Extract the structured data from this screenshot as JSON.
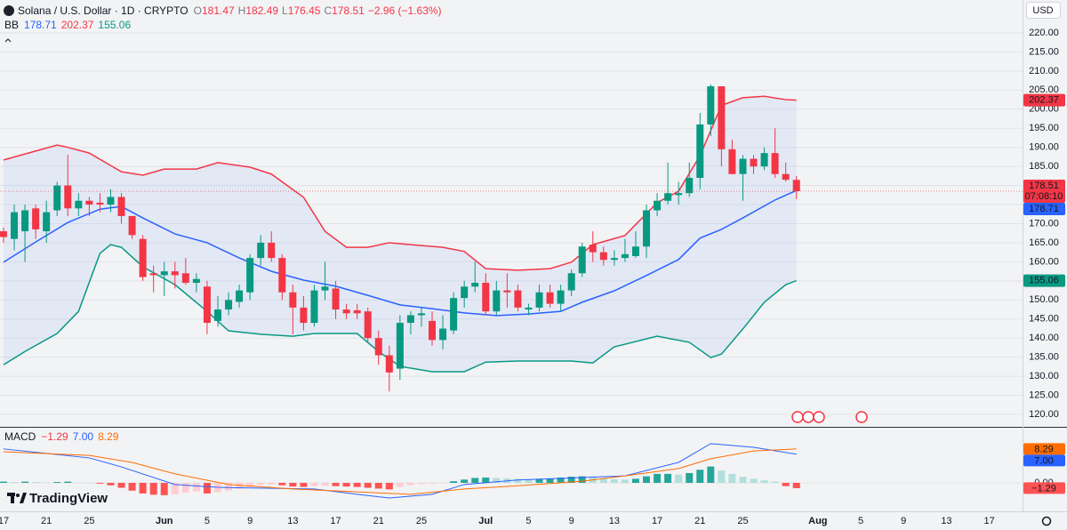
{
  "chart_data": [
    {
      "type": "candlestick",
      "title": "Solana / U.S. Dollar · 1D · CRYPTO",
      "quote_labels": [
        "O",
        "H",
        "L",
        "C"
      ],
      "change": "−2.96 (−1.63%)",
      "indicator": "BB",
      "currency": "USD",
      "countdown": "07:08:10",
      "brand": "TradingView",
      "open": [
        168,
        166,
        168,
        174,
        168,
        173.5,
        180,
        174,
        176,
        175.5,
        175,
        177,
        172,
        166,
        157,
        156.5,
        157.5,
        157,
        154.5,
        153.5,
        144.5,
        147.5,
        149.5,
        152,
        161,
        165,
        161,
        152,
        148,
        144,
        152.5,
        153,
        147.5,
        147.3,
        147,
        140,
        135.5,
        132,
        144,
        146,
        144.5,
        139.5,
        142,
        150.5,
        153.5,
        154.5,
        147,
        152.5,
        152.5,
        147.5,
        148,
        152,
        149,
        152.5,
        157,
        164.5,
        162.5,
        160.5,
        161,
        161.5,
        164,
        173.5,
        176,
        177.5,
        178,
        182,
        196,
        206,
        189.5,
        183,
        187,
        185,
        188.5,
        183,
        181.47
      ],
      "high": [
        169,
        175,
        175,
        175,
        176,
        181,
        188,
        178,
        177,
        178,
        179,
        178,
        172,
        167,
        159,
        160,
        160,
        161,
        157,
        155,
        151,
        152,
        154,
        162,
        167,
        168,
        162,
        154,
        151,
        154,
        160,
        155,
        149,
        149,
        148,
        142,
        138,
        146,
        147,
        148,
        147,
        146,
        152,
        155,
        160,
        157,
        155,
        157,
        154,
        149,
        154,
        154,
        154,
        158,
        165,
        168,
        164,
        163,
        166,
        168,
        175,
        178,
        186,
        181,
        186,
        199,
        206.5,
        206,
        192,
        188,
        188,
        190,
        195,
        186,
        182.49
      ],
      "low": [
        165,
        163,
        160,
        166,
        165,
        172,
        172,
        172,
        172,
        173,
        173,
        170,
        166,
        155,
        152,
        151,
        153,
        154,
        152,
        141,
        143,
        146,
        148,
        150,
        159,
        160,
        150,
        141,
        142,
        143,
        150,
        145,
        145,
        145,
        139,
        133,
        126,
        129,
        141,
        143,
        138,
        137,
        141,
        148,
        152,
        146,
        146,
        148,
        147,
        146,
        147,
        148,
        147,
        151,
        156,
        160,
        159,
        159,
        160,
        161,
        161,
        172,
        175,
        175,
        177,
        179,
        193,
        185,
        183,
        176,
        183,
        184,
        182,
        181,
        176.45
      ],
      "close": [
        166.5,
        173,
        173.5,
        168.5,
        173,
        180,
        174,
        176,
        175,
        175,
        177,
        172,
        167,
        156,
        156.5,
        157.5,
        156.5,
        154.5,
        155.5,
        144,
        147.5,
        150,
        152.5,
        161,
        165,
        161,
        152,
        148,
        144,
        152.5,
        153.5,
        147.5,
        146.5,
        146.5,
        140,
        135.5,
        131,
        144,
        146,
        146.5,
        139.5,
        142.5,
        150.5,
        153.5,
        154.5,
        147,
        152.5,
        152,
        148,
        148,
        152,
        149,
        152.5,
        157,
        164,
        162.5,
        160.5,
        161,
        162,
        164,
        173.5,
        176,
        178,
        178,
        182,
        196,
        206,
        189.5,
        183,
        187,
        185,
        188.5,
        183,
        181.5,
        178.51
      ],
      "up_color": "#089981",
      "down_color": "#f23645",
      "bands": [
        {
          "color": "#f23645",
          "x": [
            0,
            5,
            6,
            8,
            11,
            13,
            15,
            18,
            20,
            23,
            25,
            28,
            30,
            32,
            34,
            36,
            38,
            41,
            43,
            45,
            48,
            51,
            53,
            55,
            58,
            61,
            63,
            65,
            67,
            69,
            71,
            73,
            74
          ],
          "values": [
            186.7,
            190.6,
            190,
            188.5,
            183.6,
            182.7,
            184.3,
            184.3,
            186,
            184.8,
            183,
            176.9,
            168,
            163.8,
            163.8,
            165,
            164.5,
            163.8,
            162.7,
            158.2,
            157.8,
            158.2,
            159.9,
            164.5,
            166.9,
            175.5,
            178.5,
            187.8,
            201,
            203,
            203.4,
            202.5,
            202.37
          ]
        },
        {
          "color": "#2962ff",
          "x": [
            0,
            3,
            6,
            9,
            11,
            13,
            16,
            19,
            22,
            25,
            28,
            31,
            34,
            37,
            40,
            43,
            46,
            49,
            52,
            54,
            57,
            60,
            63,
            65,
            67,
            69,
            72,
            74
          ],
          "values": [
            159.9,
            165.2,
            170.3,
            173.8,
            174.5,
            171.5,
            167.3,
            165,
            161,
            157.5,
            155.2,
            153.6,
            151.2,
            148.7,
            147.7,
            146.6,
            145.9,
            146.3,
            147,
            149.4,
            152.4,
            156.4,
            160.6,
            166.2,
            168.5,
            171.5,
            176.2,
            178.71
          ]
        },
        {
          "color": "#089981",
          "x": [
            0,
            2,
            5,
            7,
            9,
            10,
            11,
            13,
            16,
            19,
            21,
            24,
            27,
            29,
            31,
            33,
            35,
            37,
            40,
            43,
            45,
            48,
            53,
            55,
            57,
            61,
            64,
            66,
            67,
            69,
            71,
            73,
            74
          ],
          "values": [
            133,
            136.5,
            141.2,
            147,
            162.2,
            164.5,
            163.8,
            158.7,
            154,
            147,
            141.9,
            141,
            140.5,
            141.2,
            141.2,
            141.2,
            136.5,
            132.6,
            131.2,
            131.2,
            133.7,
            134,
            134,
            133.5,
            137.7,
            140.5,
            138.9,
            134.9,
            135.8,
            142.4,
            149.4,
            154,
            155.06
          ]
        }
      ],
      "ylim": [
        116.74,
        228.62
      ],
      "yticks": [
        {
          "value": 120,
          "label": "120.00"
        },
        {
          "value": 125,
          "label": "125.00"
        },
        {
          "value": 130,
          "label": "130.00"
        },
        {
          "value": 135,
          "label": "135.00"
        },
        {
          "value": 140,
          "label": "140.00"
        },
        {
          "value": 145,
          "label": "145.00"
        },
        {
          "value": 150,
          "label": "150.00"
        },
        {
          "value": 155,
          "label": "155.00"
        },
        {
          "value": 160,
          "label": "160.00"
        },
        {
          "value": 165,
          "label": "165.00"
        },
        {
          "value": 170,
          "label": "170.00"
        },
        {
          "value": 175,
          "label": "175.00"
        },
        {
          "value": 180,
          "label": "180.00"
        },
        {
          "value": 185,
          "label": "185.00"
        },
        {
          "value": 190,
          "label": "190.00"
        },
        {
          "value": 195,
          "label": "195.00"
        },
        {
          "value": 200,
          "label": "200.00"
        },
        {
          "value": 205,
          "label": "205.00"
        },
        {
          "value": 210,
          "label": "210.00"
        },
        {
          "value": 215,
          "label": "215.00"
        },
        {
          "value": 220,
          "label": "220.00"
        }
      ],
      "xlim": [
        -0.33,
        95.1
      ],
      "xticks": [
        {
          "value": 0,
          "label": "17"
        },
        {
          "value": 4,
          "label": "21"
        },
        {
          "value": 8,
          "label": "25"
        },
        {
          "value": 15,
          "label": "Jun"
        },
        {
          "value": 19,
          "label": "5"
        },
        {
          "value": 23,
          "label": "9"
        },
        {
          "value": 27,
          "label": "13"
        },
        {
          "value": 31,
          "label": "17"
        },
        {
          "value": 35,
          "label": "21"
        },
        {
          "value": 39,
          "label": "25"
        },
        {
          "value": 45,
          "label": "Jul"
        },
        {
          "value": 49,
          "label": "5"
        },
        {
          "value": 53,
          "label": "9"
        },
        {
          "value": 57,
          "label": "13"
        },
        {
          "value": 61,
          "label": "17"
        },
        {
          "value": 65,
          "label": "21"
        },
        {
          "value": 69,
          "label": "25"
        },
        {
          "value": 76,
          "label": "Aug"
        },
        {
          "value": 80,
          "label": "5"
        },
        {
          "value": 84,
          "label": "9"
        },
        {
          "value": 88,
          "label": "13"
        },
        {
          "value": 92,
          "label": "17"
        }
      ],
      "grid": true
    },
    {
      "type": "macd",
      "indicator": "MACD",
      "ylim": [
        -6.96,
        13.26
      ],
      "yticks": [
        {
          "value": 0,
          "label": "0.00"
        }
      ],
      "histogram": {
        "values": [
          0.3,
          0.2,
          0.3,
          0.2,
          0.1,
          0.2,
          0.3,
          0.1,
          0,
          -0.2,
          -0.6,
          -1.2,
          -1.9,
          -2.6,
          -2.9,
          -3.0,
          -2.8,
          -2.4,
          -2.1,
          -2.6,
          -2.3,
          -1.9,
          -1.5,
          -1.0,
          -0.5,
          -0.4,
          -0.6,
          -0.9,
          -1.0,
          -0.8,
          -0.7,
          -0.8,
          -0.9,
          -1.0,
          -1.2,
          -1.4,
          -1.6,
          -1.0,
          -0.6,
          -0.3,
          -0.2,
          -0.1,
          0.4,
          0.8,
          1.2,
          1.3,
          1.2,
          1.1,
          1.0,
          0.9,
          1.0,
          1.1,
          1.3,
          1.5,
          1.6,
          1.4,
          1.1,
          0.9,
          0.8,
          1.0,
          1.6,
          2.2,
          2.2,
          2.0,
          2.4,
          3.2,
          4.0,
          3.0,
          2.2,
          1.5,
          1.0,
          0.6,
          0.3,
          -0.8,
          -1.29
        ],
        "last_label": "−1.29",
        "colors": [
          "#26a69a",
          "#b2dfdb",
          "#ff5252",
          "#ffcdd2"
        ]
      },
      "series": [
        {
          "color": "#2962ff",
          "x": [
            0,
            8,
            11,
            16,
            20,
            29,
            33,
            36,
            40,
            43,
            48,
            54,
            58,
            63,
            66,
            70,
            74
          ],
          "values": [
            8.3,
            6.1,
            3.9,
            -0.4,
            -1.1,
            -1.5,
            -2.8,
            -3.7,
            -2.8,
            -0.4,
            0.7,
            1.3,
            1.7,
            5.0,
            9.6,
            8.7,
            7
          ],
          "last_label": "7.00"
        },
        {
          "color": "#ff6d00",
          "x": [
            0,
            8,
            12,
            16,
            21,
            27,
            33,
            38,
            43,
            48,
            54,
            58,
            63,
            66,
            70,
            74
          ],
          "values": [
            7.6,
            6.7,
            5.0,
            2.2,
            -0.4,
            -1.5,
            -2.2,
            -2.8,
            -1.5,
            -0.7,
            0.4,
            1.7,
            3.5,
            5.9,
            7.8,
            8.29
          ],
          "last_label": "8.29"
        }
      ]
    }
  ]
}
